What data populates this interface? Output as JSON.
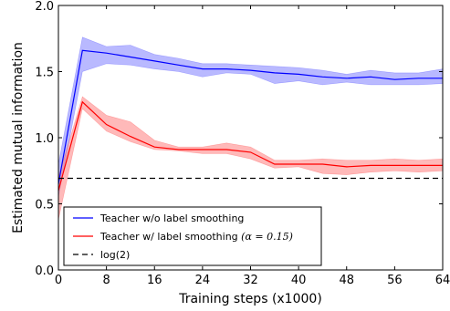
{
  "chart_data": {
    "type": "line",
    "xlabel": "Training steps (x1000)",
    "ylabel": "Estimated mutual information",
    "xlim": [
      0,
      64
    ],
    "ylim": [
      0,
      2.0
    ],
    "xticks": [
      0,
      8,
      16,
      24,
      32,
      40,
      48,
      56,
      64
    ],
    "yticks": [
      0.0,
      0.5,
      1.0,
      1.5,
      2.0
    ],
    "ytick_labels": [
      "0.0",
      "0.5",
      "1.0",
      "1.5",
      "2.0"
    ],
    "grid": false,
    "legend_position": "bottom-left",
    "series": [
      {
        "name": "Teacher w/o label smoothing",
        "color": "#0000ff",
        "band_color": "#8080ff",
        "x": [
          0,
          4,
          8,
          12,
          16,
          20,
          24,
          28,
          32,
          36,
          40,
          44,
          48,
          52,
          56,
          60,
          64
        ],
        "values": [
          0.65,
          1.66,
          1.64,
          1.61,
          1.58,
          1.55,
          1.52,
          1.52,
          1.51,
          1.49,
          1.48,
          1.46,
          1.45,
          1.46,
          1.44,
          1.45,
          1.45
        ],
        "lower": [
          0.55,
          1.5,
          1.56,
          1.55,
          1.52,
          1.5,
          1.46,
          1.49,
          1.48,
          1.41,
          1.43,
          1.4,
          1.42,
          1.4,
          1.4,
          1.4,
          1.41
        ],
        "upper": [
          0.8,
          1.76,
          1.69,
          1.7,
          1.63,
          1.6,
          1.56,
          1.56,
          1.55,
          1.54,
          1.53,
          1.51,
          1.48,
          1.51,
          1.49,
          1.49,
          1.52
        ]
      },
      {
        "name": "Teacher w/ label smoothing",
        "name_math": "(α = 0.15)",
        "color": "#ff0000",
        "band_color": "#ff8080",
        "x": [
          0,
          4,
          8,
          12,
          16,
          20,
          24,
          28,
          32,
          36,
          40,
          44,
          48,
          52,
          56,
          60,
          64
        ],
        "values": [
          0.6,
          1.27,
          1.1,
          1.01,
          0.93,
          0.91,
          0.91,
          0.91,
          0.89,
          0.8,
          0.8,
          0.8,
          0.78,
          0.79,
          0.79,
          0.79,
          0.79
        ],
        "lower": [
          0.38,
          1.22,
          1.05,
          0.97,
          0.91,
          0.9,
          0.88,
          0.88,
          0.84,
          0.77,
          0.78,
          0.73,
          0.72,
          0.74,
          0.75,
          0.74,
          0.75
        ],
        "upper": [
          0.7,
          1.31,
          1.17,
          1.12,
          0.98,
          0.93,
          0.93,
          0.96,
          0.93,
          0.83,
          0.83,
          0.84,
          0.83,
          0.83,
          0.84,
          0.83,
          0.84
        ]
      },
      {
        "name": "log(2)",
        "color": "#000000",
        "dashed": true,
        "x": [
          0,
          64
        ],
        "values": [
          0.693,
          0.693
        ]
      }
    ]
  }
}
